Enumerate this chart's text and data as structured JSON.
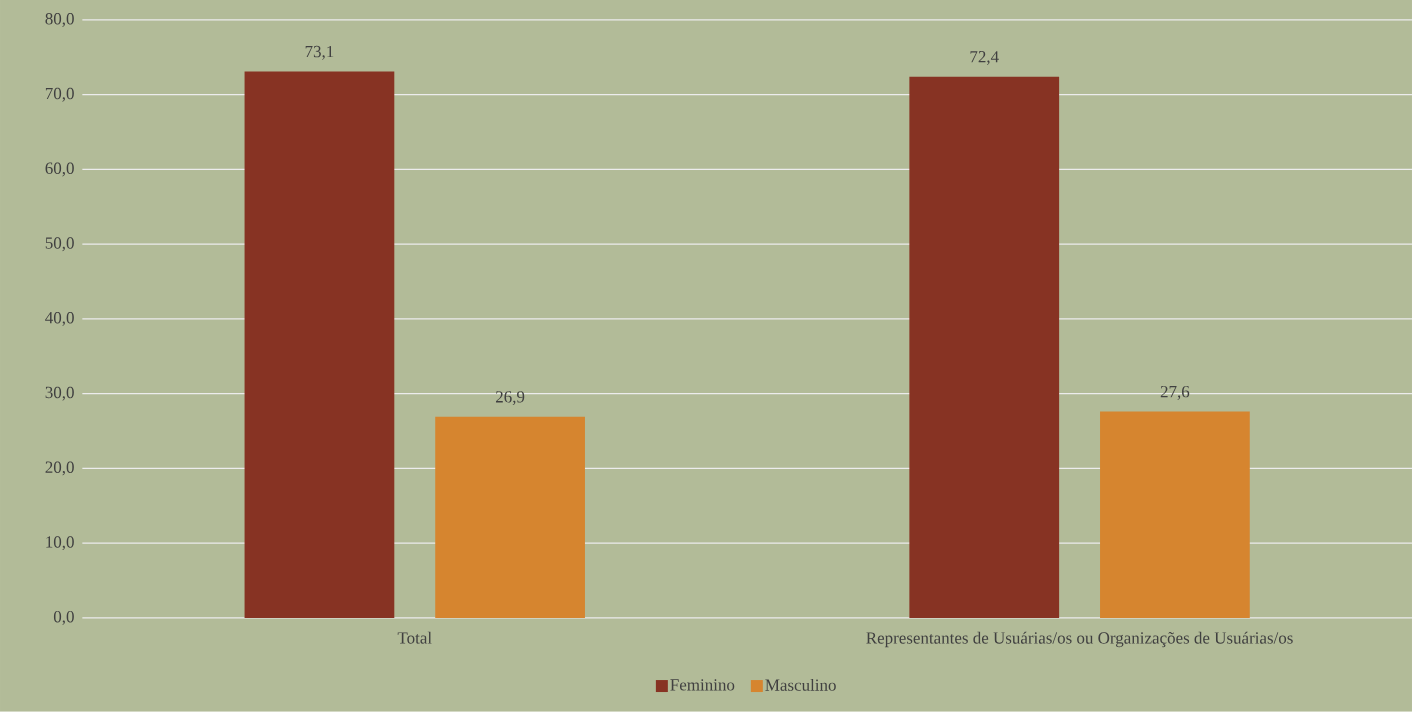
{
  "chart_data": {
    "type": "bar",
    "categories": [
      "Total",
      "Representantes de Usuárias/os ou Organizações de Usuárias/os"
    ],
    "series": [
      {
        "name": "Feminino",
        "color": "#873323",
        "values": [
          73.1,
          72.4
        ],
        "value_labels": [
          "73,1",
          "72,4"
        ]
      },
      {
        "name": "Masculino",
        "color": "#d6852f",
        "values": [
          26.9,
          27.6
        ],
        "value_labels": [
          "26,9",
          "27,6"
        ]
      }
    ],
    "ylim": [
      0,
      80
    ],
    "yticks": [
      {
        "value": 0,
        "label": "0,0"
      },
      {
        "value": 10,
        "label": "10,0"
      },
      {
        "value": 20,
        "label": "20,0"
      },
      {
        "value": 30,
        "label": "30,0"
      },
      {
        "value": 40,
        "label": "40,0"
      },
      {
        "value": 50,
        "label": "50,0"
      },
      {
        "value": 60,
        "label": "60,0"
      },
      {
        "value": 70,
        "label": "70,0"
      },
      {
        "value": 80,
        "label": "80,0"
      }
    ],
    "grid": "y",
    "legend": "bottom"
  }
}
